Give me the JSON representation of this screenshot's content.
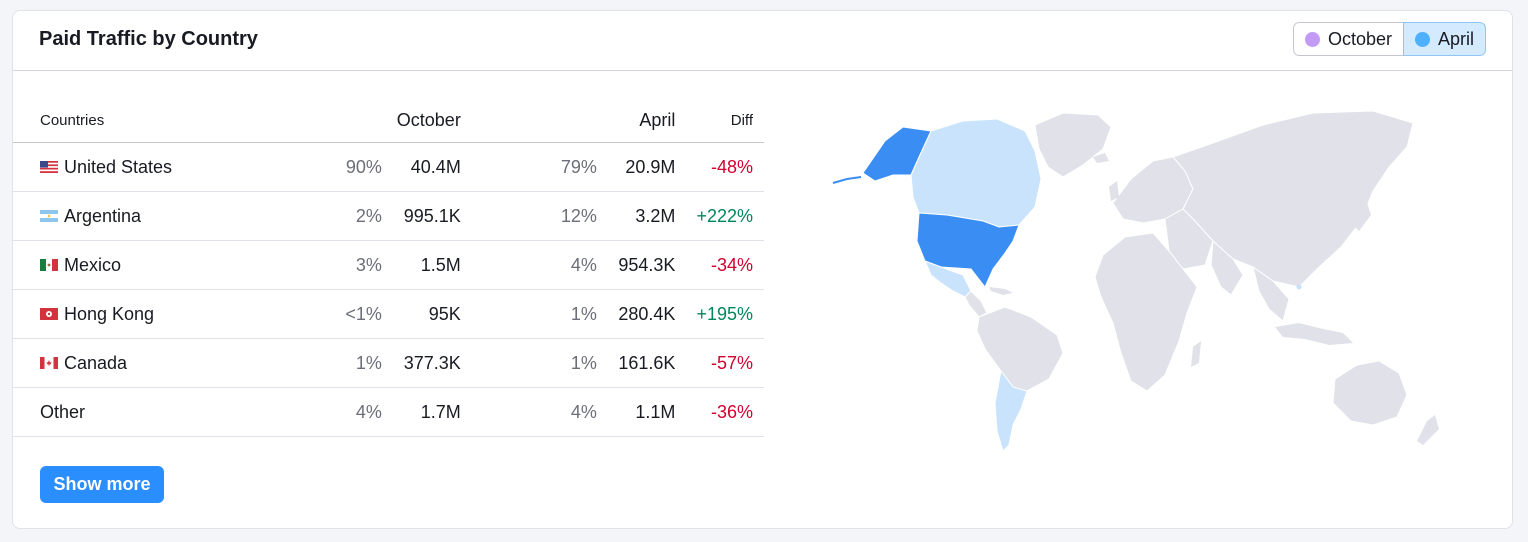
{
  "card": {
    "title": "Paid Traffic by Country"
  },
  "legend": {
    "items": [
      {
        "label": "October",
        "color": "#c39bf7"
      },
      {
        "label": "April",
        "color": "#4fb0ff"
      }
    ],
    "active": "April"
  },
  "table": {
    "headers": {
      "countries": "Countries",
      "october": "October",
      "april": "April",
      "diff": "Diff"
    },
    "rows": [
      {
        "country": "United States",
        "flag": "us-flag-icon",
        "oct_share": "90%",
        "oct_value": "40.4M",
        "apr_share": "79%",
        "apr_value": "20.9M",
        "diff": "-48%"
      },
      {
        "country": "Argentina",
        "flag": "ar-flag-icon",
        "oct_share": "2%",
        "oct_value": "995.1K",
        "apr_share": "12%",
        "apr_value": "3.2M",
        "diff": "+222%"
      },
      {
        "country": "Mexico",
        "flag": "mx-flag-icon",
        "oct_share": "3%",
        "oct_value": "1.5M",
        "apr_share": "4%",
        "apr_value": "954.3K",
        "diff": "-34%"
      },
      {
        "country": "Hong Kong",
        "flag": "hk-flag-icon",
        "oct_share": "<1%",
        "oct_value": "95K",
        "apr_share": "1%",
        "apr_value": "280.4K",
        "diff": "+195%"
      },
      {
        "country": "Canada",
        "flag": "ca-flag-icon",
        "oct_share": "1%",
        "oct_value": "377.3K",
        "apr_share": "1%",
        "apr_value": "161.6K",
        "diff": "-57%"
      },
      {
        "country": "Other",
        "flag": "",
        "oct_share": "4%",
        "oct_value": "1.7M",
        "apr_share": "4%",
        "apr_value": "1.1M",
        "diff": "-36%"
      }
    ]
  },
  "actions": {
    "show_more": "Show more"
  },
  "map": {
    "colors": {
      "strong": "#3a8ef3",
      "light": "#c8e3fb",
      "none": "#e0e1e9"
    }
  }
}
